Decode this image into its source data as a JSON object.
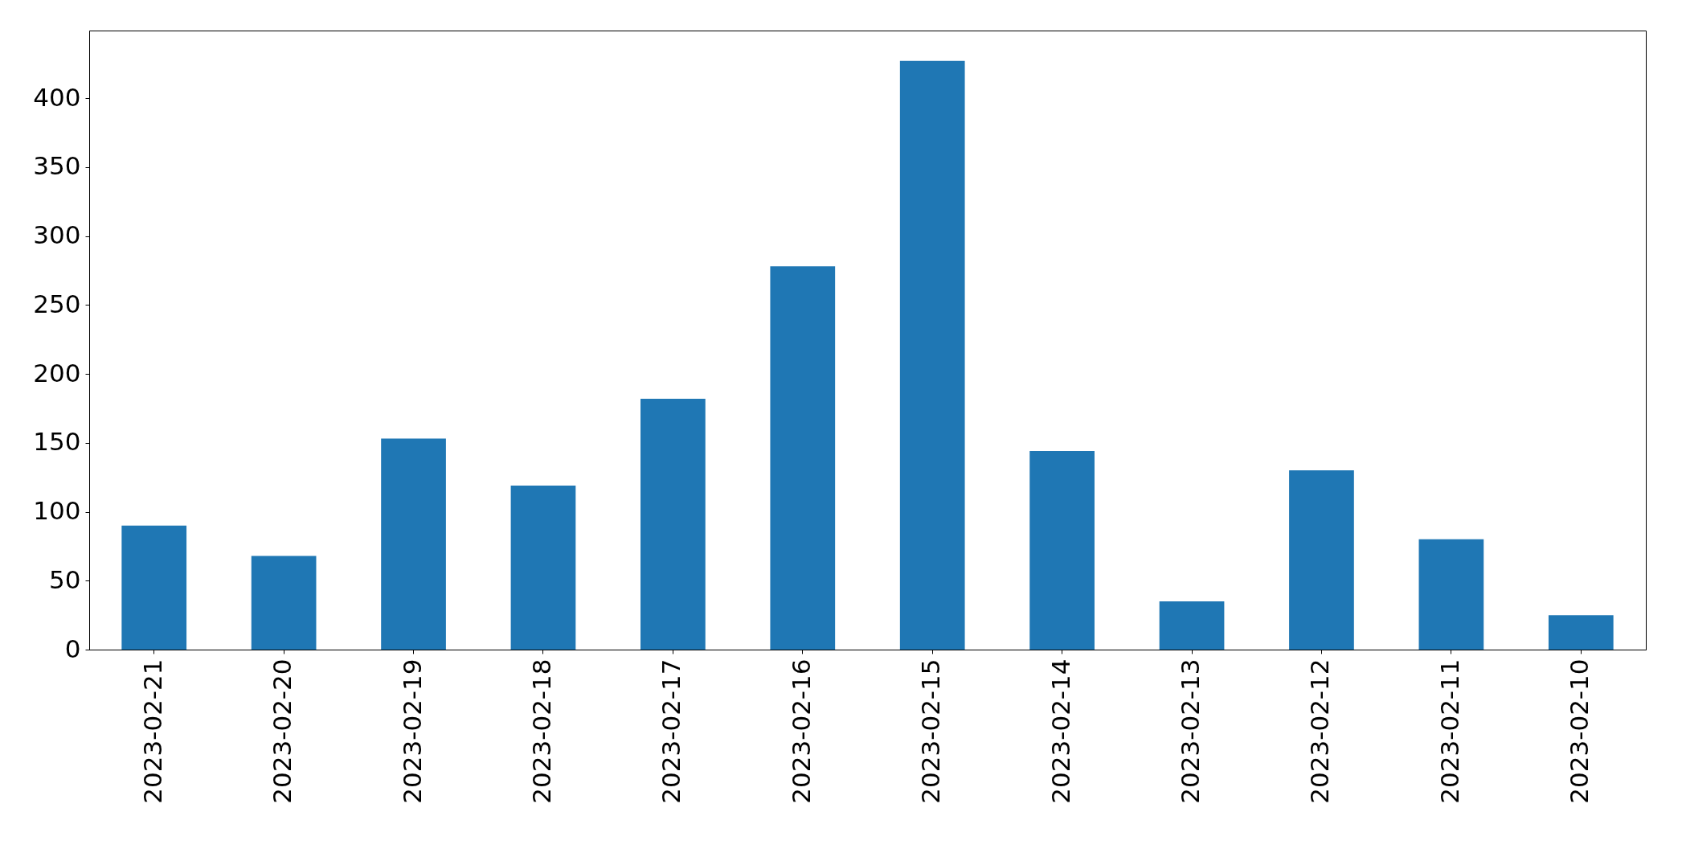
{
  "chart_data": {
    "type": "bar",
    "categories": [
      "2023-02-21",
      "2023-02-20",
      "2023-02-19",
      "2023-02-18",
      "2023-02-17",
      "2023-02-16",
      "2023-02-15",
      "2023-02-14",
      "2023-02-13",
      "2023-02-12",
      "2023-02-11",
      "2023-02-10"
    ],
    "values": [
      90,
      68,
      153,
      119,
      182,
      278,
      427,
      144,
      35,
      130,
      80,
      25
    ],
    "color": "#1f77b4",
    "ylim": [
      0,
      449
    ],
    "yticks": [
      0,
      50,
      100,
      150,
      200,
      250,
      300,
      350,
      400
    ],
    "grid": false
  }
}
